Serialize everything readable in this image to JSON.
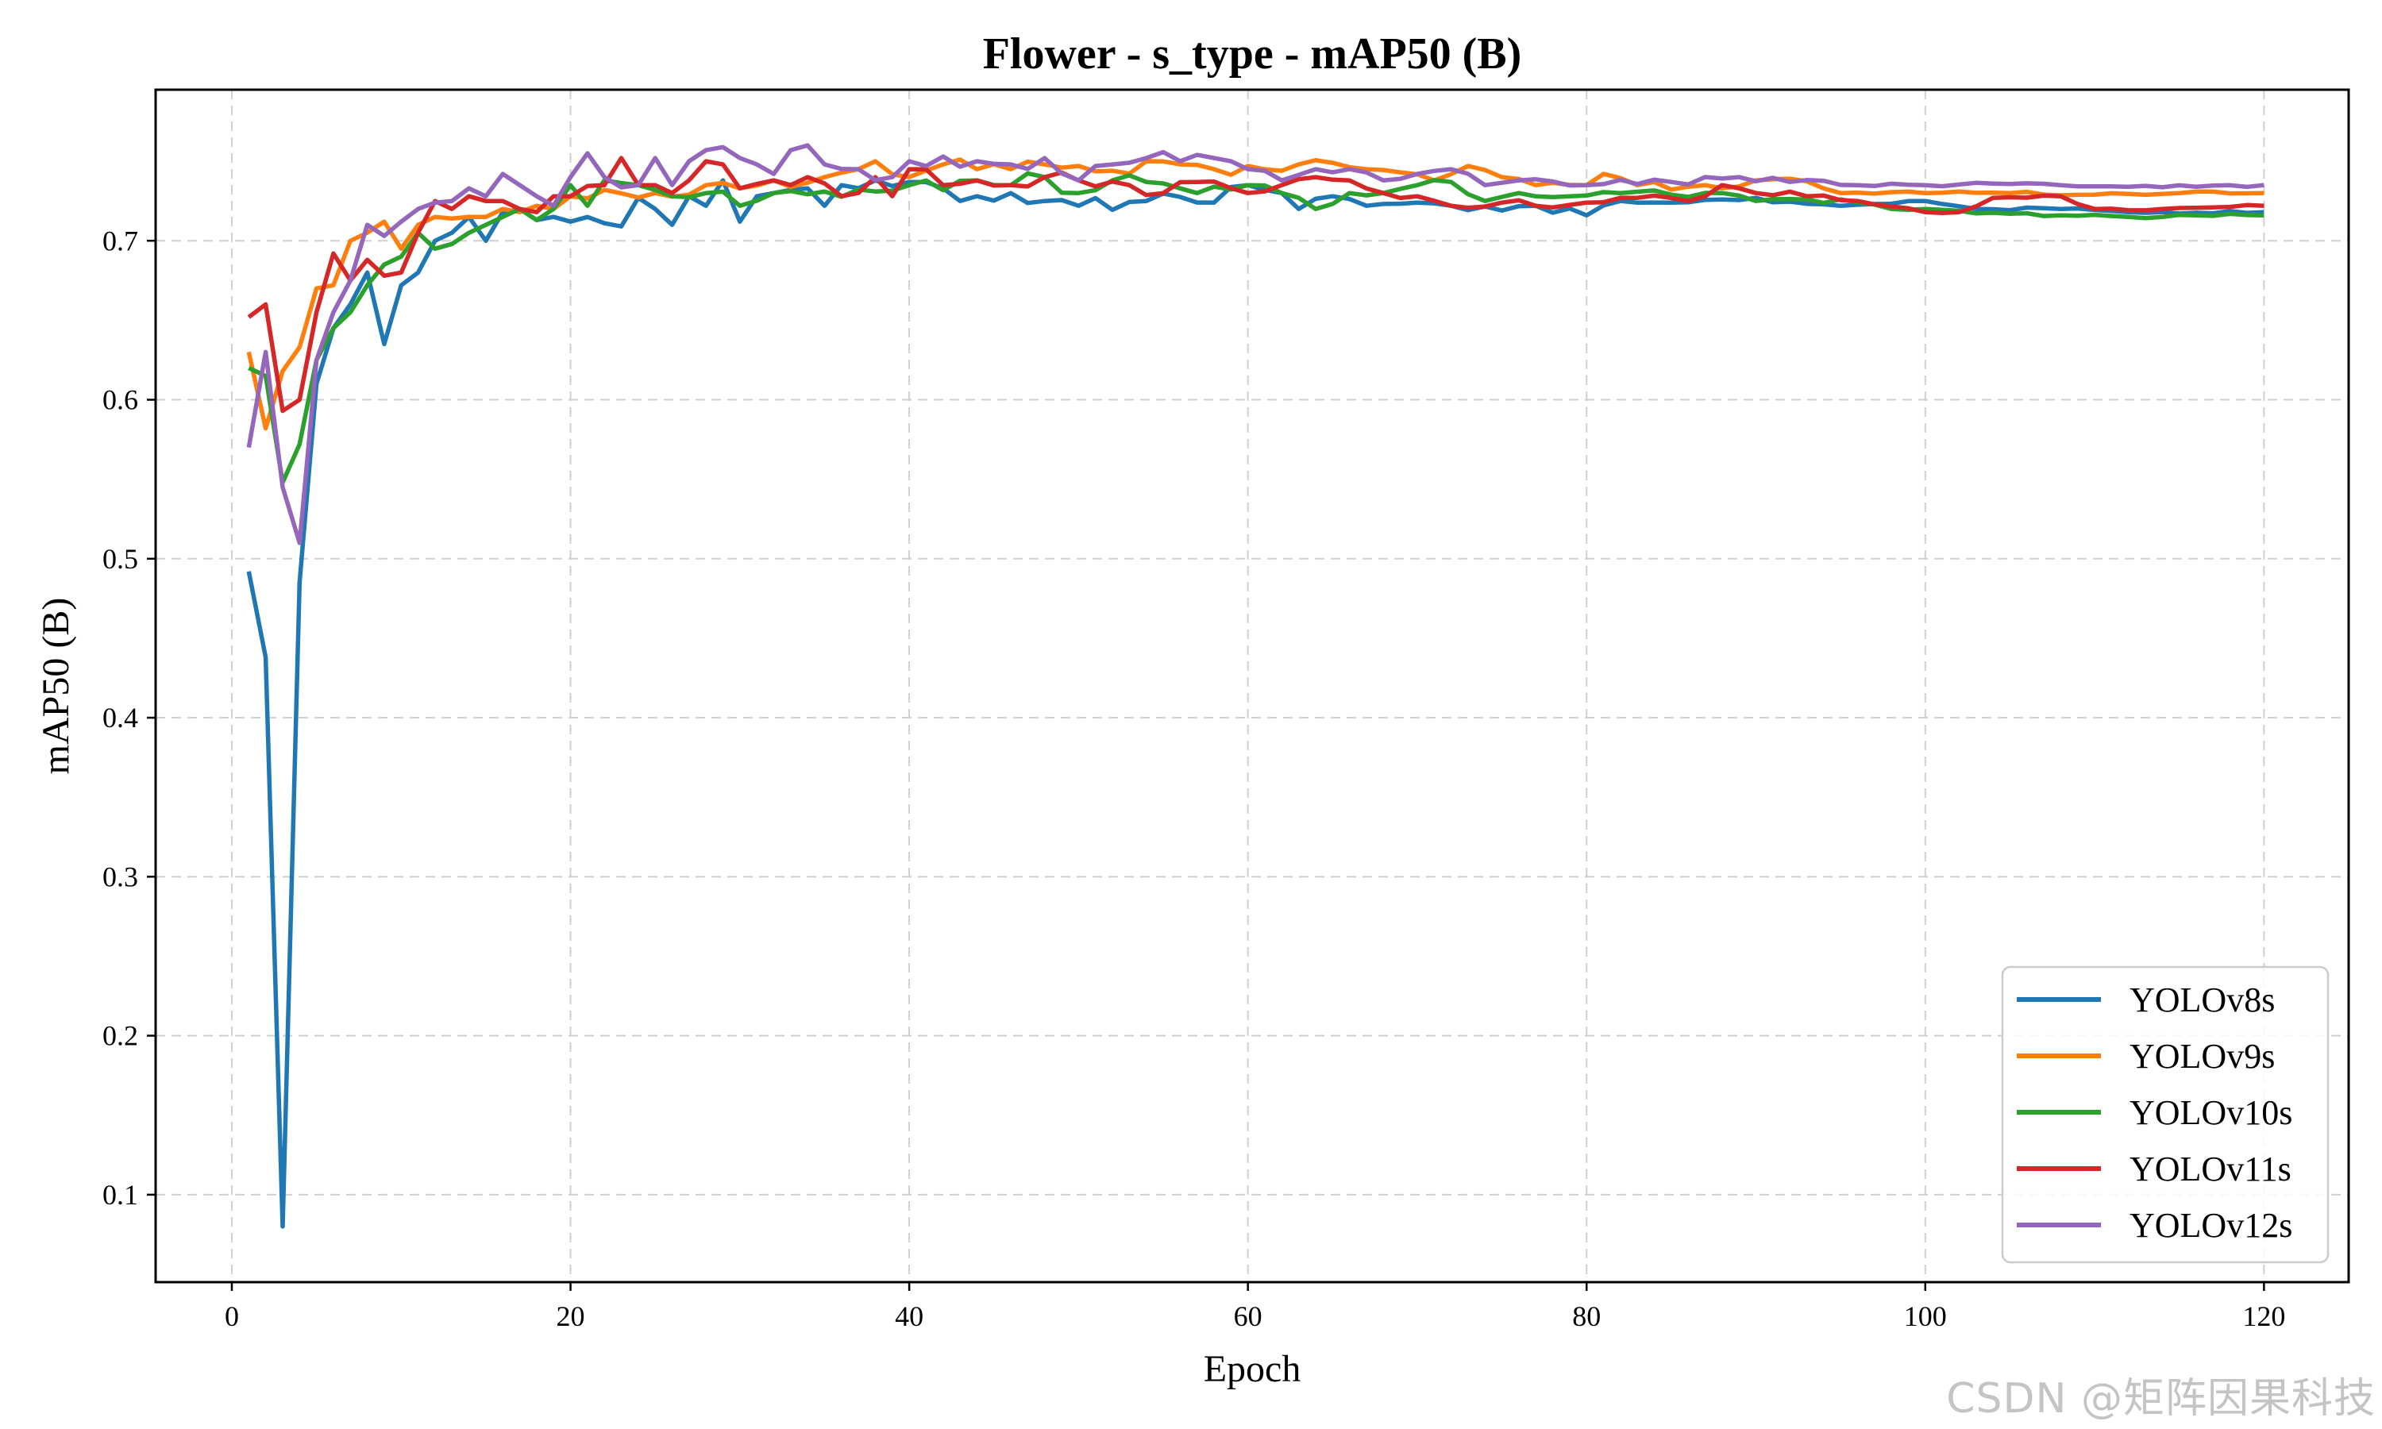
{
  "chart_data": {
    "type": "line",
    "title": "Flower - s_type - mAP50 (B)",
    "xlabel": "Epoch",
    "ylabel": "mAP50 (B)",
    "xlim": [
      -4.5,
      125
    ],
    "ylim": [
      0.045,
      0.795
    ],
    "xticks": [
      0,
      20,
      40,
      60,
      80,
      100,
      120
    ],
    "yticks": [
      0.1,
      0.2,
      0.3,
      0.4,
      0.5,
      0.6,
      0.7
    ],
    "grid": true,
    "legend_position": "lower-right",
    "x_start": 1,
    "series": [
      {
        "name": "YOLOv8s",
        "color": "#1f77b4",
        "anchors": [
          [
            1,
            0.492
          ],
          [
            2,
            0.438
          ],
          [
            3,
            0.08
          ],
          [
            4,
            0.485
          ],
          [
            5,
            0.61
          ],
          [
            6,
            0.645
          ],
          [
            7,
            0.66
          ],
          [
            8,
            0.68
          ],
          [
            9,
            0.635
          ],
          [
            10,
            0.672
          ],
          [
            11,
            0.68
          ],
          [
            12,
            0.7
          ],
          [
            13,
            0.705
          ],
          [
            14,
            0.715
          ],
          [
            15,
            0.7
          ],
          [
            16,
            0.718
          ],
          [
            17,
            0.72
          ],
          [
            18,
            0.713
          ],
          [
            19,
            0.715
          ],
          [
            20,
            0.712
          ],
          [
            22,
            0.711
          ],
          [
            23,
            0.709
          ],
          [
            24,
            0.727
          ],
          [
            25,
            0.72
          ],
          [
            26,
            0.71
          ],
          [
            27,
            0.728
          ],
          [
            28,
            0.722
          ],
          [
            29,
            0.738
          ],
          [
            30,
            0.712
          ],
          [
            31,
            0.728
          ],
          [
            32,
            0.73
          ],
          [
            33,
            0.732
          ],
          [
            34,
            0.733
          ],
          [
            35,
            0.722
          ],
          [
            36,
            0.735
          ],
          [
            38,
            0.738
          ],
          [
            40,
            0.737
          ],
          [
            42,
            0.733
          ],
          [
            43,
            0.725
          ],
          [
            46,
            0.73
          ],
          [
            48,
            0.725
          ],
          [
            50,
            0.722
          ],
          [
            54,
            0.725
          ],
          [
            58,
            0.724
          ],
          [
            60,
            0.735
          ],
          [
            62,
            0.73
          ],
          [
            63,
            0.72
          ],
          [
            65,
            0.728
          ],
          [
            67,
            0.722
          ],
          [
            70,
            0.724
          ],
          [
            72,
            0.722
          ],
          [
            75,
            0.719
          ],
          [
            77,
            0.722
          ],
          [
            80,
            0.716
          ],
          [
            82,
            0.725
          ],
          [
            85,
            0.724
          ],
          [
            88,
            0.726
          ],
          [
            90,
            0.727
          ],
          [
            95,
            0.722
          ],
          [
            100,
            0.725
          ],
          [
            103,
            0.72
          ],
          [
            108,
            0.72
          ],
          [
            112,
            0.718
          ],
          [
            120,
            0.718
          ]
        ]
      },
      {
        "name": "YOLOv9s",
        "color": "#ff7f0e",
        "anchors": [
          [
            1,
            0.63
          ],
          [
            2,
            0.582
          ],
          [
            3,
            0.618
          ],
          [
            4,
            0.633
          ],
          [
            5,
            0.67
          ],
          [
            6,
            0.672
          ],
          [
            7,
            0.7
          ],
          [
            8,
            0.705
          ],
          [
            9,
            0.712
          ],
          [
            10,
            0.695
          ],
          [
            11,
            0.71
          ],
          [
            12,
            0.715
          ],
          [
            13,
            0.714
          ],
          [
            14,
            0.715
          ],
          [
            15,
            0.715
          ],
          [
            16,
            0.72
          ],
          [
            17,
            0.718
          ],
          [
            18,
            0.722
          ],
          [
            19,
            0.72
          ],
          [
            20,
            0.728
          ],
          [
            22,
            0.732
          ],
          [
            25,
            0.73
          ],
          [
            27,
            0.729
          ],
          [
            28,
            0.735
          ],
          [
            30,
            0.733
          ],
          [
            32,
            0.738
          ],
          [
            35,
            0.74
          ],
          [
            37,
            0.745
          ],
          [
            38,
            0.75
          ],
          [
            40,
            0.74
          ],
          [
            42,
            0.748
          ],
          [
            44,
            0.745
          ],
          [
            46,
            0.745
          ],
          [
            48,
            0.748
          ],
          [
            50,
            0.747
          ],
          [
            52,
            0.744
          ],
          [
            54,
            0.75
          ],
          [
            56,
            0.748
          ],
          [
            58,
            0.745
          ],
          [
            60,
            0.747
          ],
          [
            62,
            0.744
          ],
          [
            63,
            0.748
          ],
          [
            65,
            0.749
          ],
          [
            67,
            0.745
          ],
          [
            69,
            0.743
          ],
          [
            71,
            0.738
          ],
          [
            73,
            0.747
          ],
          [
            75,
            0.74
          ],
          [
            77,
            0.735
          ],
          [
            80,
            0.735
          ],
          [
            81,
            0.742
          ],
          [
            83,
            0.735
          ],
          [
            86,
            0.734
          ],
          [
            88,
            0.733
          ],
          [
            90,
            0.738
          ],
          [
            92,
            0.739
          ],
          [
            95,
            0.73
          ],
          [
            100,
            0.73
          ],
          [
            105,
            0.73
          ],
          [
            110,
            0.729
          ],
          [
            115,
            0.73
          ],
          [
            120,
            0.73
          ]
        ]
      },
      {
        "name": "YOLOv10s",
        "color": "#2ca02c",
        "anchors": [
          [
            1,
            0.62
          ],
          [
            2,
            0.615
          ],
          [
            3,
            0.548
          ],
          [
            4,
            0.572
          ],
          [
            5,
            0.625
          ],
          [
            6,
            0.645
          ],
          [
            7,
            0.655
          ],
          [
            8,
            0.672
          ],
          [
            9,
            0.685
          ],
          [
            10,
            0.69
          ],
          [
            11,
            0.705
          ],
          [
            12,
            0.695
          ],
          [
            13,
            0.698
          ],
          [
            14,
            0.705
          ],
          [
            15,
            0.71
          ],
          [
            16,
            0.715
          ],
          [
            17,
            0.72
          ],
          [
            18,
            0.713
          ],
          [
            19,
            0.72
          ],
          [
            20,
            0.735
          ],
          [
            21,
            0.722
          ],
          [
            22,
            0.738
          ],
          [
            24,
            0.735
          ],
          [
            26,
            0.728
          ],
          [
            28,
            0.73
          ],
          [
            30,
            0.722
          ],
          [
            32,
            0.73
          ],
          [
            35,
            0.731
          ],
          [
            38,
            0.731
          ],
          [
            40,
            0.735
          ],
          [
            44,
            0.738
          ],
          [
            46,
            0.735
          ],
          [
            48,
            0.74
          ],
          [
            50,
            0.73
          ],
          [
            52,
            0.738
          ],
          [
            54,
            0.737
          ],
          [
            57,
            0.73
          ],
          [
            60,
            0.735
          ],
          [
            62,
            0.73
          ],
          [
            64,
            0.72
          ],
          [
            66,
            0.73
          ],
          [
            68,
            0.73
          ],
          [
            70,
            0.735
          ],
          [
            72,
            0.737
          ],
          [
            74,
            0.725
          ],
          [
            76,
            0.73
          ],
          [
            79,
            0.728
          ],
          [
            82,
            0.73
          ],
          [
            85,
            0.729
          ],
          [
            88,
            0.73
          ],
          [
            90,
            0.725
          ],
          [
            93,
            0.726
          ],
          [
            95,
            0.726
          ],
          [
            98,
            0.72
          ],
          [
            100,
            0.72
          ],
          [
            105,
            0.717
          ],
          [
            108,
            0.716
          ],
          [
            112,
            0.715
          ],
          [
            116,
            0.716
          ],
          [
            120,
            0.716
          ]
        ]
      },
      {
        "name": "YOLOv11s",
        "color": "#d62728",
        "anchors": [
          [
            1,
            0.652
          ],
          [
            2,
            0.66
          ],
          [
            3,
            0.593
          ],
          [
            4,
            0.6
          ],
          [
            5,
            0.655
          ],
          [
            6,
            0.692
          ],
          [
            7,
            0.675
          ],
          [
            8,
            0.688
          ],
          [
            9,
            0.678
          ],
          [
            10,
            0.68
          ],
          [
            11,
            0.705
          ],
          [
            12,
            0.725
          ],
          [
            13,
            0.72
          ],
          [
            14,
            0.728
          ],
          [
            15,
            0.725
          ],
          [
            16,
            0.725
          ],
          [
            17,
            0.72
          ],
          [
            18,
            0.718
          ],
          [
            19,
            0.728
          ],
          [
            20,
            0.728
          ],
          [
            22,
            0.735
          ],
          [
            23,
            0.752
          ],
          [
            24,
            0.735
          ],
          [
            26,
            0.73
          ],
          [
            27,
            0.738
          ],
          [
            28,
            0.75
          ],
          [
            29,
            0.748
          ],
          [
            30,
            0.733
          ],
          [
            32,
            0.738
          ],
          [
            34,
            0.74
          ],
          [
            36,
            0.728
          ],
          [
            38,
            0.74
          ],
          [
            39,
            0.728
          ],
          [
            40,
            0.745
          ],
          [
            42,
            0.735
          ],
          [
            44,
            0.738
          ],
          [
            46,
            0.735
          ],
          [
            48,
            0.74
          ],
          [
            50,
            0.738
          ],
          [
            53,
            0.735
          ],
          [
            55,
            0.73
          ],
          [
            57,
            0.737
          ],
          [
            60,
            0.73
          ],
          [
            62,
            0.735
          ],
          [
            64,
            0.74
          ],
          [
            66,
            0.738
          ],
          [
            68,
            0.73
          ],
          [
            70,
            0.728
          ],
          [
            72,
            0.722
          ],
          [
            75,
            0.724
          ],
          [
            77,
            0.722
          ],
          [
            80,
            0.724
          ],
          [
            83,
            0.727
          ],
          [
            86,
            0.725
          ],
          [
            88,
            0.735
          ],
          [
            90,
            0.73
          ],
          [
            93,
            0.728
          ],
          [
            96,
            0.725
          ],
          [
            100,
            0.718
          ],
          [
            102,
            0.718
          ],
          [
            104,
            0.727
          ],
          [
            108,
            0.728
          ],
          [
            110,
            0.72
          ],
          [
            114,
            0.72
          ],
          [
            117,
            0.721
          ],
          [
            120,
            0.722
          ]
        ]
      },
      {
        "name": "YOLOv12s",
        "color": "#9467bd",
        "anchors": [
          [
            1,
            0.57
          ],
          [
            2,
            0.63
          ],
          [
            3,
            0.545
          ],
          [
            4,
            0.51
          ],
          [
            5,
            0.625
          ],
          [
            6,
            0.655
          ],
          [
            7,
            0.675
          ],
          [
            8,
            0.71
          ],
          [
            9,
            0.703
          ],
          [
            10,
            0.712
          ],
          [
            11,
            0.72
          ],
          [
            12,
            0.724
          ],
          [
            13,
            0.725
          ],
          [
            14,
            0.733
          ],
          [
            15,
            0.728
          ],
          [
            16,
            0.742
          ],
          [
            17,
            0.735
          ],
          [
            18,
            0.728
          ],
          [
            19,
            0.722
          ],
          [
            20,
            0.74
          ],
          [
            21,
            0.755
          ],
          [
            22,
            0.74
          ],
          [
            24,
            0.735
          ],
          [
            25,
            0.752
          ],
          [
            26,
            0.735
          ],
          [
            27,
            0.75
          ],
          [
            28,
            0.757
          ],
          [
            30,
            0.752
          ],
          [
            31,
            0.748
          ],
          [
            32,
            0.742
          ],
          [
            33,
            0.757
          ],
          [
            34,
            0.76
          ],
          [
            35,
            0.748
          ],
          [
            37,
            0.745
          ],
          [
            39,
            0.74
          ],
          [
            40,
            0.75
          ],
          [
            42,
            0.753
          ],
          [
            44,
            0.75
          ],
          [
            46,
            0.748
          ],
          [
            48,
            0.752
          ],
          [
            50,
            0.738
          ],
          [
            52,
            0.748
          ],
          [
            54,
            0.752
          ],
          [
            56,
            0.75
          ],
          [
            58,
            0.752
          ],
          [
            60,
            0.745
          ],
          [
            62,
            0.738
          ],
          [
            64,
            0.745
          ],
          [
            66,
            0.745
          ],
          [
            68,
            0.738
          ],
          [
            70,
            0.742
          ],
          [
            72,
            0.745
          ],
          [
            74,
            0.735
          ],
          [
            76,
            0.738
          ],
          [
            80,
            0.735
          ],
          [
            85,
            0.737
          ],
          [
            89,
            0.74
          ],
          [
            92,
            0.737
          ],
          [
            96,
            0.735
          ],
          [
            100,
            0.735
          ],
          [
            104,
            0.736
          ],
          [
            108,
            0.735
          ],
          [
            112,
            0.734
          ],
          [
            116,
            0.734
          ],
          [
            120,
            0.735
          ]
        ]
      }
    ]
  },
  "watermark": "CSDN @矩阵因果科技"
}
